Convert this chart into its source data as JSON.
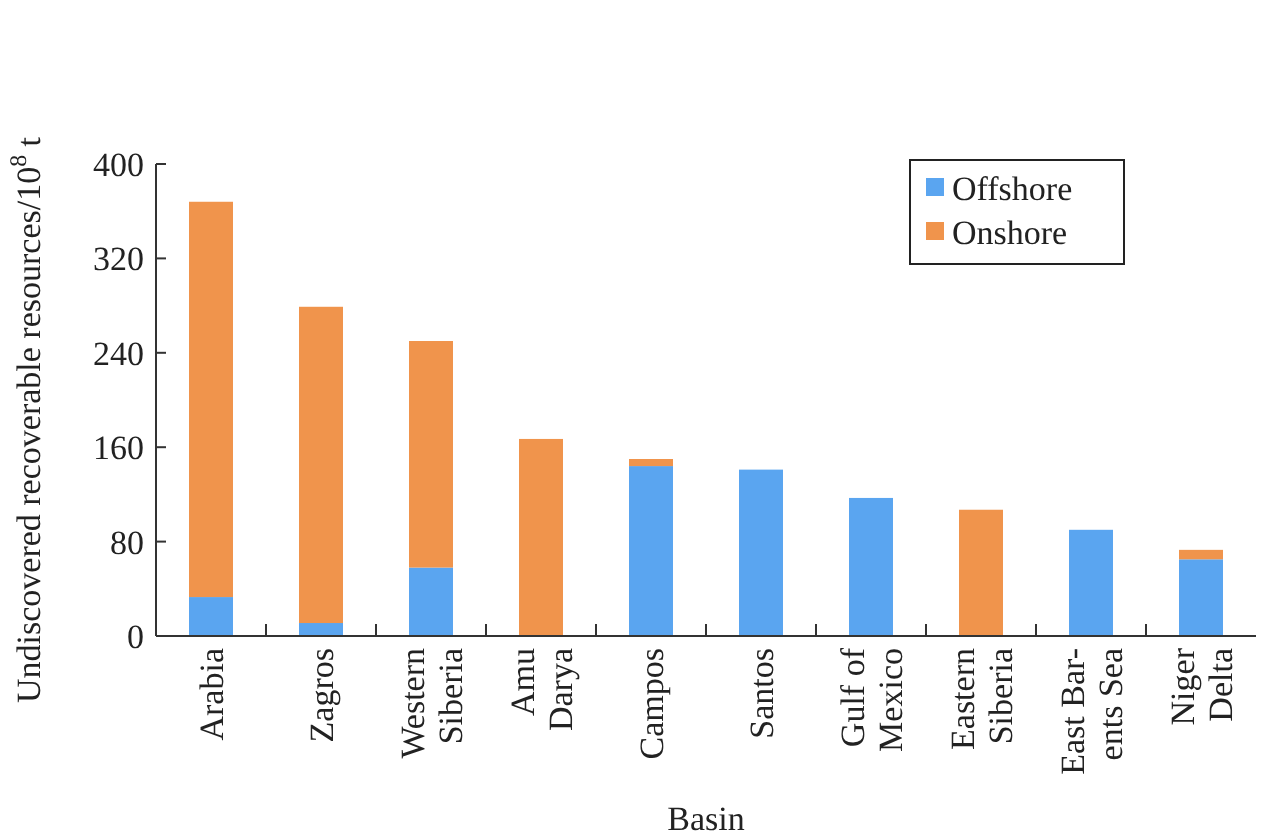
{
  "chart_data": {
    "type": "bar",
    "stacked": true,
    "xlabel": "Basin",
    "ylabel": "Undiscovered recoverable resources/10$^{8}$ t",
    "categories": [
      "Arabia",
      "Zagros",
      "Western\nSiberia",
      "Amu\nDarya",
      "Campos",
      "Santos",
      "Gulf of\nMexico",
      "Eastern\nSiberia",
      "East Bar-\nents Sea",
      "Niger\nDelta"
    ],
    "series": [
      {
        "name": "Offshore",
        "color": "#5aa5f0",
        "values": [
          33,
          11,
          58,
          0,
          144,
          141,
          117,
          0,
          90,
          65
        ]
      },
      {
        "name": "Onshore",
        "color": "#f0944c",
        "values": [
          335,
          268,
          192,
          167,
          6,
          0,
          0,
          107,
          0,
          8
        ]
      }
    ],
    "ylim": [
      0,
      400
    ],
    "yticks": [
      0,
      80,
      160,
      240,
      320,
      400
    ],
    "legend": "top right"
  }
}
